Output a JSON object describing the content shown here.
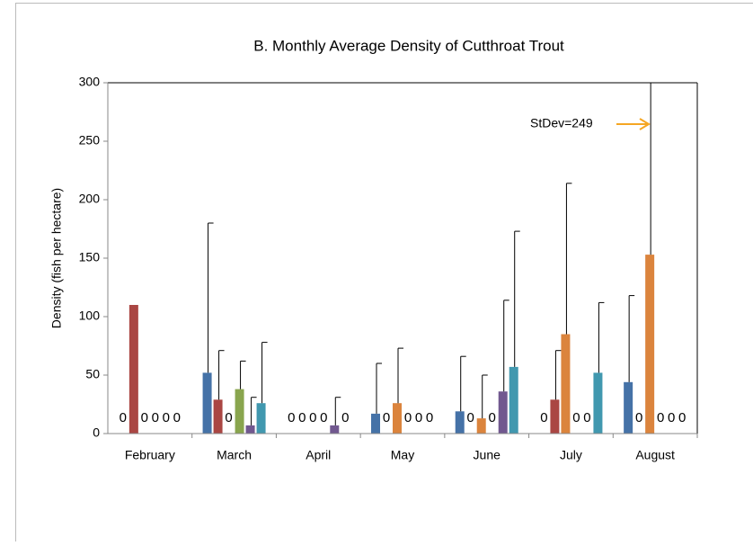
{
  "chart_data": {
    "type": "bar",
    "title": "B.     Monthly Average Density of Cutthroat Trout",
    "y_label": "Density (fish per hectare)",
    "categories": [
      "February",
      "March",
      "April",
      "May",
      "June",
      "July",
      "August"
    ],
    "series": [
      {
        "color": "#4572a7",
        "values": [
          0,
          52,
          0,
          17,
          19,
          0,
          44
        ],
        "errors": [
          0,
          128,
          0,
          43,
          47,
          0,
          74
        ]
      },
      {
        "color": "#aa4643",
        "values": [
          110,
          29,
          0,
          0,
          0,
          29,
          0
        ],
        "errors": [
          0,
          42,
          0,
          0,
          0,
          42,
          0
        ]
      },
      {
        "color": "#db843d",
        "values": [
          0,
          0,
          0,
          26,
          13,
          85,
          153
        ],
        "errors": [
          0,
          0,
          0,
          47,
          37,
          129,
          249
        ]
      },
      {
        "color": "#89a54e",
        "values": [
          0,
          38,
          0,
          0,
          0,
          0,
          0
        ],
        "errors": [
          0,
          24,
          0,
          0,
          0,
          0,
          0
        ]
      },
      {
        "color": "#71588f",
        "values": [
          0,
          7,
          7,
          0,
          36,
          0,
          0
        ],
        "errors": [
          0,
          24,
          24,
          0,
          78,
          0,
          0
        ]
      },
      {
        "color": "#4198af",
        "values": [
          0,
          26,
          0,
          0,
          57,
          52,
          0
        ],
        "errors": [
          0,
          52,
          0,
          0,
          116,
          60,
          0
        ]
      }
    ],
    "ylim": [
      0,
      300
    ],
    "yticks": [
      0,
      50,
      100,
      150,
      200,
      250,
      300
    ],
    "annotation": "StDev=249",
    "annotation_color": "#f5a623"
  }
}
